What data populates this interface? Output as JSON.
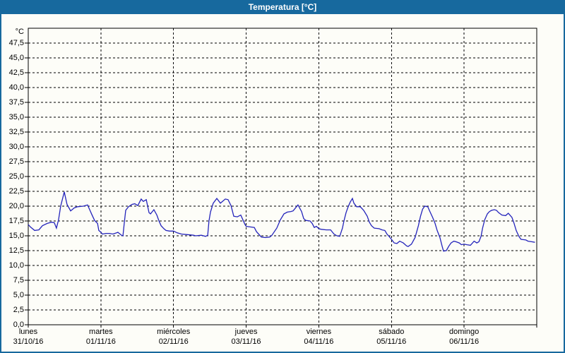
{
  "window": {
    "title": "Temperatura [°C]"
  },
  "colors": {
    "titlebar_bg": "#17699E",
    "titlebar_text": "#ffffff",
    "window_border": "#17699E",
    "plot_bg": "#fdfdf8",
    "plot_border": "#000000",
    "grid": "#000000",
    "line": "#2424BB",
    "label_text": "#000000"
  },
  "chart_data": {
    "type": "line",
    "title": "Temperatura [°C]",
    "y_unit_label": "°C",
    "ylim": [
      0,
      50
    ],
    "ytick_step": 2.5,
    "ytick_labels": [
      "47,5",
      "45,0",
      "42,5",
      "40,0",
      "37,5",
      "35,0",
      "32,5",
      "30,0",
      "27,5",
      "25,0",
      "22,5",
      "20,0",
      "17,5",
      "15,0",
      "12,5",
      "10,0",
      "7,5",
      "5,0",
      "2,5",
      "0,0"
    ],
    "grid": "dashed",
    "legend": "none",
    "x_total_hours": 168,
    "x_days": [
      {
        "name": "lunes",
        "date": "31/10/16"
      },
      {
        "name": "martes",
        "date": "01/11/16"
      },
      {
        "name": "miércoles",
        "date": "02/11/16"
      },
      {
        "name": "jueves",
        "date": "03/11/16"
      },
      {
        "name": "viernes",
        "date": "04/11/16"
      },
      {
        "name": "sábado",
        "date": "05/11/16"
      },
      {
        "name": "domingo",
        "date": "06/11/16"
      }
    ],
    "series": [
      {
        "name": "Temperatura",
        "points": [
          [
            0,
            16.9
          ],
          [
            0.7,
            16.5
          ],
          [
            2.1,
            15.9
          ],
          [
            3.5,
            16.0
          ],
          [
            4.7,
            16.7
          ],
          [
            6.3,
            17.1
          ],
          [
            7.7,
            17.3
          ],
          [
            8.6,
            17.2
          ],
          [
            9.3,
            16.3
          ],
          [
            10.0,
            17.7
          ],
          [
            10.7,
            20.0
          ],
          [
            11.9,
            22.4
          ],
          [
            12.8,
            20.3
          ],
          [
            14.0,
            19.2
          ],
          [
            15.2,
            19.7
          ],
          [
            16.3,
            19.9
          ],
          [
            18.2,
            20.0
          ],
          [
            19.6,
            20.2
          ],
          [
            21.0,
            18.6
          ],
          [
            21.9,
            17.6
          ],
          [
            22.9,
            17.1
          ],
          [
            23.3,
            15.9
          ],
          [
            24.0,
            15.6
          ],
          [
            24.5,
            15.3
          ],
          [
            25.7,
            15.4
          ],
          [
            26.8,
            15.4
          ],
          [
            28.0,
            15.3
          ],
          [
            29.2,
            15.5
          ],
          [
            29.6,
            15.6
          ],
          [
            30.8,
            15.1
          ],
          [
            31.3,
            15.0
          ],
          [
            31.7,
            17.1
          ],
          [
            32.2,
            19.3
          ],
          [
            33.1,
            19.9
          ],
          [
            34.3,
            20.3
          ],
          [
            35.2,
            20.4
          ],
          [
            36.2,
            20.1
          ],
          [
            37.3,
            21.2
          ],
          [
            38.0,
            20.8
          ],
          [
            39.0,
            21.1
          ],
          [
            39.9,
            18.9
          ],
          [
            40.4,
            18.7
          ],
          [
            41.5,
            19.4
          ],
          [
            42.5,
            18.5
          ],
          [
            43.2,
            17.5
          ],
          [
            43.9,
            16.7
          ],
          [
            44.8,
            16.2
          ],
          [
            45.5,
            15.9
          ],
          [
            46.7,
            15.8
          ],
          [
            48.0,
            15.8
          ],
          [
            49.2,
            15.5
          ],
          [
            50.6,
            15.3
          ],
          [
            52.5,
            15.2
          ],
          [
            54.6,
            15.1
          ],
          [
            55.3,
            15.0
          ],
          [
            57.2,
            15.1
          ],
          [
            58.6,
            14.9
          ],
          [
            59.3,
            15.1
          ],
          [
            59.7,
            17.5
          ],
          [
            60.2,
            19.0
          ],
          [
            61.1,
            20.5
          ],
          [
            62.3,
            21.3
          ],
          [
            63.5,
            20.5
          ],
          [
            65.1,
            21.2
          ],
          [
            66.0,
            21.1
          ],
          [
            67.0,
            20.1
          ],
          [
            67.9,
            18.3
          ],
          [
            69.1,
            18.2
          ],
          [
            70.2,
            18.5
          ],
          [
            70.9,
            17.7
          ],
          [
            71.6,
            16.9
          ],
          [
            72.0,
            16.6
          ],
          [
            73.3,
            16.5
          ],
          [
            74.7,
            16.4
          ],
          [
            75.4,
            15.7
          ],
          [
            77.0,
            14.8
          ],
          [
            78.4,
            14.7
          ],
          [
            79.8,
            14.8
          ],
          [
            80.5,
            15.1
          ],
          [
            82.1,
            16.3
          ],
          [
            83.3,
            17.7
          ],
          [
            84.5,
            18.7
          ],
          [
            85.6,
            19.0
          ],
          [
            86.8,
            19.1
          ],
          [
            87.5,
            19.2
          ],
          [
            89.1,
            20.2
          ],
          [
            90.3,
            19.1
          ],
          [
            91.0,
            17.9
          ],
          [
            91.7,
            17.6
          ],
          [
            93.1,
            17.5
          ],
          [
            93.8,
            17.1
          ],
          [
            94.5,
            16.4
          ],
          [
            95.2,
            16.6
          ],
          [
            96.0,
            16.2
          ],
          [
            96.8,
            16.1
          ],
          [
            98.5,
            16.0
          ],
          [
            99.9,
            16.0
          ],
          [
            101.0,
            15.3
          ],
          [
            102.0,
            15.0
          ],
          [
            102.9,
            14.9
          ],
          [
            103.8,
            16.3
          ],
          [
            104.3,
            17.5
          ],
          [
            105.0,
            18.9
          ],
          [
            105.7,
            19.9
          ],
          [
            106.4,
            20.7
          ],
          [
            107.1,
            21.3
          ],
          [
            107.6,
            20.5
          ],
          [
            108.5,
            19.9
          ],
          [
            109.7,
            19.9
          ],
          [
            110.8,
            19.3
          ],
          [
            112.0,
            18.3
          ],
          [
            112.7,
            17.3
          ],
          [
            113.4,
            16.7
          ],
          [
            114.3,
            16.3
          ],
          [
            115.9,
            16.2
          ],
          [
            116.9,
            16.0
          ],
          [
            117.8,
            15.9
          ],
          [
            118.5,
            15.3
          ],
          [
            119.2,
            14.9
          ],
          [
            120.0,
            14.4
          ],
          [
            120.9,
            13.8
          ],
          [
            121.8,
            13.7
          ],
          [
            122.7,
            14.1
          ],
          [
            123.9,
            13.8
          ],
          [
            125.0,
            13.3
          ],
          [
            125.5,
            13.2
          ],
          [
            126.6,
            13.6
          ],
          [
            127.8,
            14.7
          ],
          [
            128.9,
            16.7
          ],
          [
            129.6,
            18.3
          ],
          [
            130.3,
            19.5
          ],
          [
            131.0,
            20.0
          ],
          [
            132.0,
            19.9
          ],
          [
            132.7,
            19.1
          ],
          [
            133.6,
            18.1
          ],
          [
            134.4,
            17.1
          ],
          [
            135.1,
            15.9
          ],
          [
            136.0,
            14.7
          ],
          [
            136.7,
            13.3
          ],
          [
            137.2,
            12.4
          ],
          [
            138.1,
            12.5
          ],
          [
            139.0,
            13.3
          ],
          [
            139.7,
            13.8
          ],
          [
            140.6,
            14.1
          ],
          [
            141.3,
            14.0
          ],
          [
            142.4,
            13.8
          ],
          [
            143.1,
            13.5
          ],
          [
            144.0,
            13.6
          ],
          [
            144.9,
            13.5
          ],
          [
            146.1,
            13.4
          ],
          [
            147.3,
            14.1
          ],
          [
            148.2,
            13.8
          ],
          [
            148.9,
            14.0
          ],
          [
            149.6,
            14.9
          ],
          [
            150.1,
            16.3
          ],
          [
            150.8,
            17.7
          ],
          [
            151.7,
            18.7
          ],
          [
            152.4,
            19.1
          ],
          [
            153.1,
            19.3
          ],
          [
            154.0,
            19.4
          ],
          [
            154.7,
            19.3
          ],
          [
            155.4,
            18.9
          ],
          [
            156.5,
            18.5
          ],
          [
            157.7,
            18.4
          ],
          [
            158.6,
            18.8
          ],
          [
            159.8,
            18.1
          ],
          [
            160.5,
            17.1
          ],
          [
            161.2,
            15.9
          ],
          [
            162.1,
            14.9
          ],
          [
            162.8,
            14.4
          ],
          [
            164.4,
            14.3
          ],
          [
            165.1,
            14.1
          ],
          [
            166.3,
            14.0
          ],
          [
            167.4,
            13.9
          ]
        ]
      }
    ]
  }
}
